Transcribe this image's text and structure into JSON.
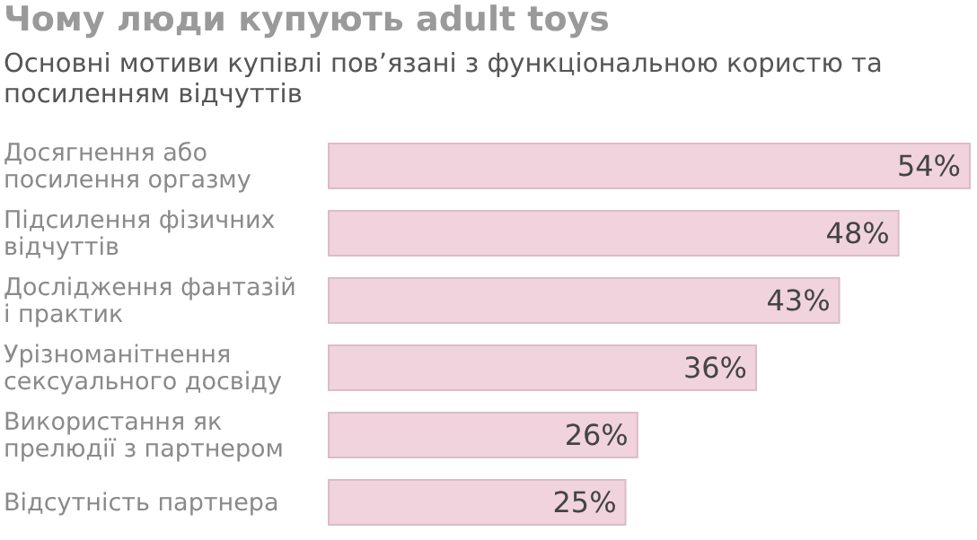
{
  "chart_data": {
    "type": "bar",
    "orientation": "horizontal",
    "title": "Чому люди купують adult toys",
    "subtitle": "Основні мотиви купівлі пов’язані з функціональною користю та посиленням відчуттів",
    "categories": [
      "Досягнення або посилення оргазму",
      "Підсилення фізичних відчуттів",
      "Дослідження фантазій і практик",
      "Урізноманітнення сексуального досвіду",
      "Використання як прелюдії з партнером",
      "Відсутність партнера"
    ],
    "values": [
      54,
      48,
      43,
      36,
      26,
      25
    ],
    "value_labels": [
      "54%",
      "48%",
      "43%",
      "36%",
      "26%",
      "25%"
    ],
    "color": "#f0d3dc",
    "grid": false,
    "legend": false
  }
}
